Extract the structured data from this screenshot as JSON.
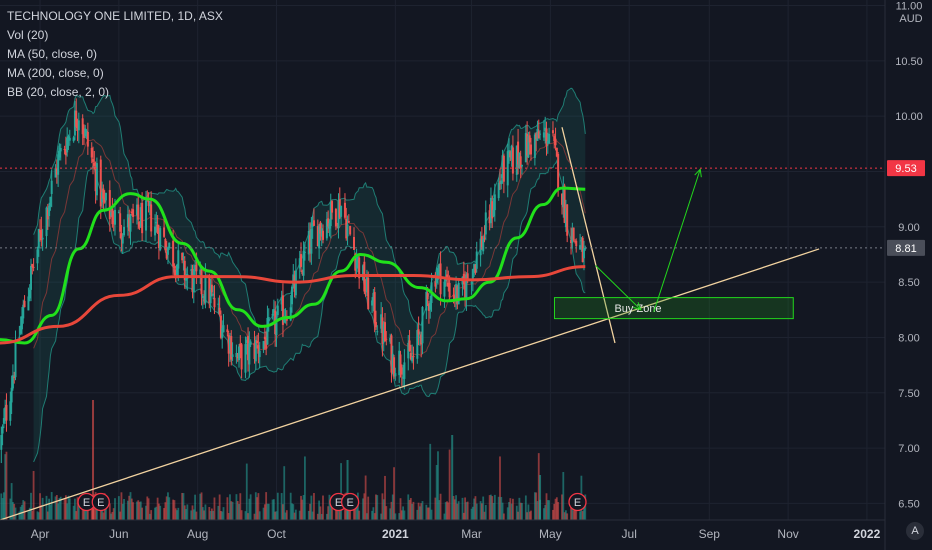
{
  "legend": {
    "title": "TECHNOLOGY ONE LIMITED, 1D, ASX",
    "indicators": [
      "Vol (20)",
      "MA (50, close, 0)",
      "MA (200, close, 0)",
      "BB (20, close, 2, 0)"
    ]
  },
  "scale_button_label": "A",
  "colors": {
    "background": "#131722",
    "grid": "#1e2330",
    "up": "#26a69a",
    "down": "#ef5350",
    "ma50": "#21e11b",
    "ma200": "#e8473a",
    "bb": "#1f7d74",
    "trendline": "#f2d3a0",
    "axis_text": "#b2b5be"
  },
  "chart_data": {
    "type": "candlestick",
    "title": "TECHNOLOGY ONE LIMITED, 1D, ASX",
    "currency": "AUD",
    "x_tick_labels": [
      "Apr",
      "Jun",
      "Aug",
      "Oct",
      "2021",
      "Mar",
      "May",
      "Jul",
      "Sep",
      "Nov",
      "2022"
    ],
    "y_tick_labels": [
      "11.00",
      "10.50",
      "10.00",
      "9.50",
      "9.00",
      "8.50",
      "8.00",
      "7.50",
      "7.00",
      "6.50"
    ],
    "ylim": [
      6.35,
      11.05
    ],
    "date_range": [
      "2020-03-01",
      "2022-01-15"
    ],
    "price_lines": [
      {
        "value": 9.53,
        "label": "9.53",
        "style": "dotted",
        "color": "#f23645"
      },
      {
        "value": 8.81,
        "label": "8.81",
        "style": "dotted",
        "color": "#787b86"
      }
    ],
    "price_anchors": [
      {
        "date": "2020-03-01",
        "close": 7.0
      },
      {
        "date": "2020-03-20",
        "close": 8.3
      },
      {
        "date": "2020-04-15",
        "close": 9.6
      },
      {
        "date": "2020-05-01",
        "close": 10.05
      },
      {
        "date": "2020-05-20",
        "close": 9.2
      },
      {
        "date": "2020-06-05",
        "close": 9.0
      },
      {
        "date": "2020-06-25",
        "close": 9.1
      },
      {
        "date": "2020-07-20",
        "close": 8.6
      },
      {
        "date": "2020-08-10",
        "close": 8.4
      },
      {
        "date": "2020-09-01",
        "close": 7.8
      },
      {
        "date": "2020-09-20",
        "close": 7.95
      },
      {
        "date": "2020-10-10",
        "close": 8.3
      },
      {
        "date": "2020-10-30",
        "close": 8.95
      },
      {
        "date": "2020-11-20",
        "close": 9.2
      },
      {
        "date": "2020-12-10",
        "close": 8.4
      },
      {
        "date": "2020-12-30",
        "close": 7.8
      },
      {
        "date": "2021-01-15",
        "close": 7.8
      },
      {
        "date": "2021-02-01",
        "close": 8.6
      },
      {
        "date": "2021-02-20",
        "close": 8.35
      },
      {
        "date": "2021-03-10",
        "close": 8.9
      },
      {
        "date": "2021-03-25",
        "close": 9.5
      },
      {
        "date": "2021-04-15",
        "close": 9.75
      },
      {
        "date": "2021-05-01",
        "close": 9.85
      },
      {
        "date": "2021-05-15",
        "close": 9.0
      },
      {
        "date": "2021-05-28",
        "close": 8.7
      }
    ],
    "series": [
      {
        "name": "MA (50, close, 0)",
        "points": [
          {
            "date": "2020-03-01",
            "value": 7.98
          },
          {
            "date": "2020-03-20",
            "value": 7.95
          },
          {
            "date": "2020-04-10",
            "value": 8.2
          },
          {
            "date": "2020-05-01",
            "value": 8.8
          },
          {
            "date": "2020-05-20",
            "value": 9.15
          },
          {
            "date": "2020-06-10",
            "value": 9.3
          },
          {
            "date": "2020-06-25",
            "value": 9.25
          },
          {
            "date": "2020-07-20",
            "value": 8.85
          },
          {
            "date": "2020-08-10",
            "value": 8.6
          },
          {
            "date": "2020-09-01",
            "value": 8.25
          },
          {
            "date": "2020-09-20",
            "value": 8.1
          },
          {
            "date": "2020-10-10",
            "value": 8.18
          },
          {
            "date": "2020-10-30",
            "value": 8.3
          },
          {
            "date": "2020-11-20",
            "value": 8.6
          },
          {
            "date": "2020-12-05",
            "value": 8.75
          },
          {
            "date": "2020-12-25",
            "value": 8.68
          },
          {
            "date": "2021-01-20",
            "value": 8.45
          },
          {
            "date": "2021-02-10",
            "value": 8.33
          },
          {
            "date": "2021-02-25",
            "value": 8.35
          },
          {
            "date": "2021-03-15",
            "value": 8.5
          },
          {
            "date": "2021-04-05",
            "value": 8.9
          },
          {
            "date": "2021-04-25",
            "value": 9.2
          },
          {
            "date": "2021-05-10",
            "value": 9.35
          },
          {
            "date": "2021-05-28",
            "value": 9.34
          }
        ]
      },
      {
        "name": "MA (200, close, 0)",
        "points": [
          {
            "date": "2020-03-01",
            "value": 7.95
          },
          {
            "date": "2020-04-15",
            "value": 8.1
          },
          {
            "date": "2020-06-01",
            "value": 8.38
          },
          {
            "date": "2020-07-15",
            "value": 8.55
          },
          {
            "date": "2020-09-01",
            "value": 8.55
          },
          {
            "date": "2020-10-15",
            "value": 8.5
          },
          {
            "date": "2020-12-01",
            "value": 8.56
          },
          {
            "date": "2021-01-15",
            "value": 8.56
          },
          {
            "date": "2021-03-01",
            "value": 8.52
          },
          {
            "date": "2021-04-15",
            "value": 8.55
          },
          {
            "date": "2021-05-28",
            "value": 8.64
          }
        ]
      }
    ],
    "volume_events": [
      {
        "date": "2020-05-07",
        "label": "E"
      },
      {
        "date": "2020-05-18",
        "label": "E"
      },
      {
        "date": "2020-11-18",
        "label": "E"
      },
      {
        "date": "2020-11-27",
        "label": "E"
      },
      {
        "date": "2021-05-22",
        "label": "E"
      }
    ],
    "annotations": {
      "trendline": {
        "start": {
          "date": "2020-03-01",
          "value": 6.35
        },
        "end": {
          "date": "2021-11-25",
          "value": 8.8
        }
      },
      "buy_zone": {
        "label": "Buy Zone",
        "date_start": "2021-06-08",
        "date_end": "2021-11-05",
        "value_top": 8.36,
        "value_bottom": 8.17
      },
      "target_arrow": {
        "start": {
          "date": "2021-07-20",
          "value": 8.23
        },
        "end": {
          "date": "2021-08-25",
          "value": 9.52
        }
      },
      "down_arrow": {
        "start": {
          "date": "2021-06-05",
          "value": 8.65
        },
        "end": {
          "date": "2021-07-10",
          "value": 8.25
        }
      },
      "wedge_line": {
        "start": {
          "date": "2021-05-10",
          "value": 9.9
        },
        "end": {
          "date": "2021-06-20",
          "value": 7.95
        }
      }
    }
  }
}
